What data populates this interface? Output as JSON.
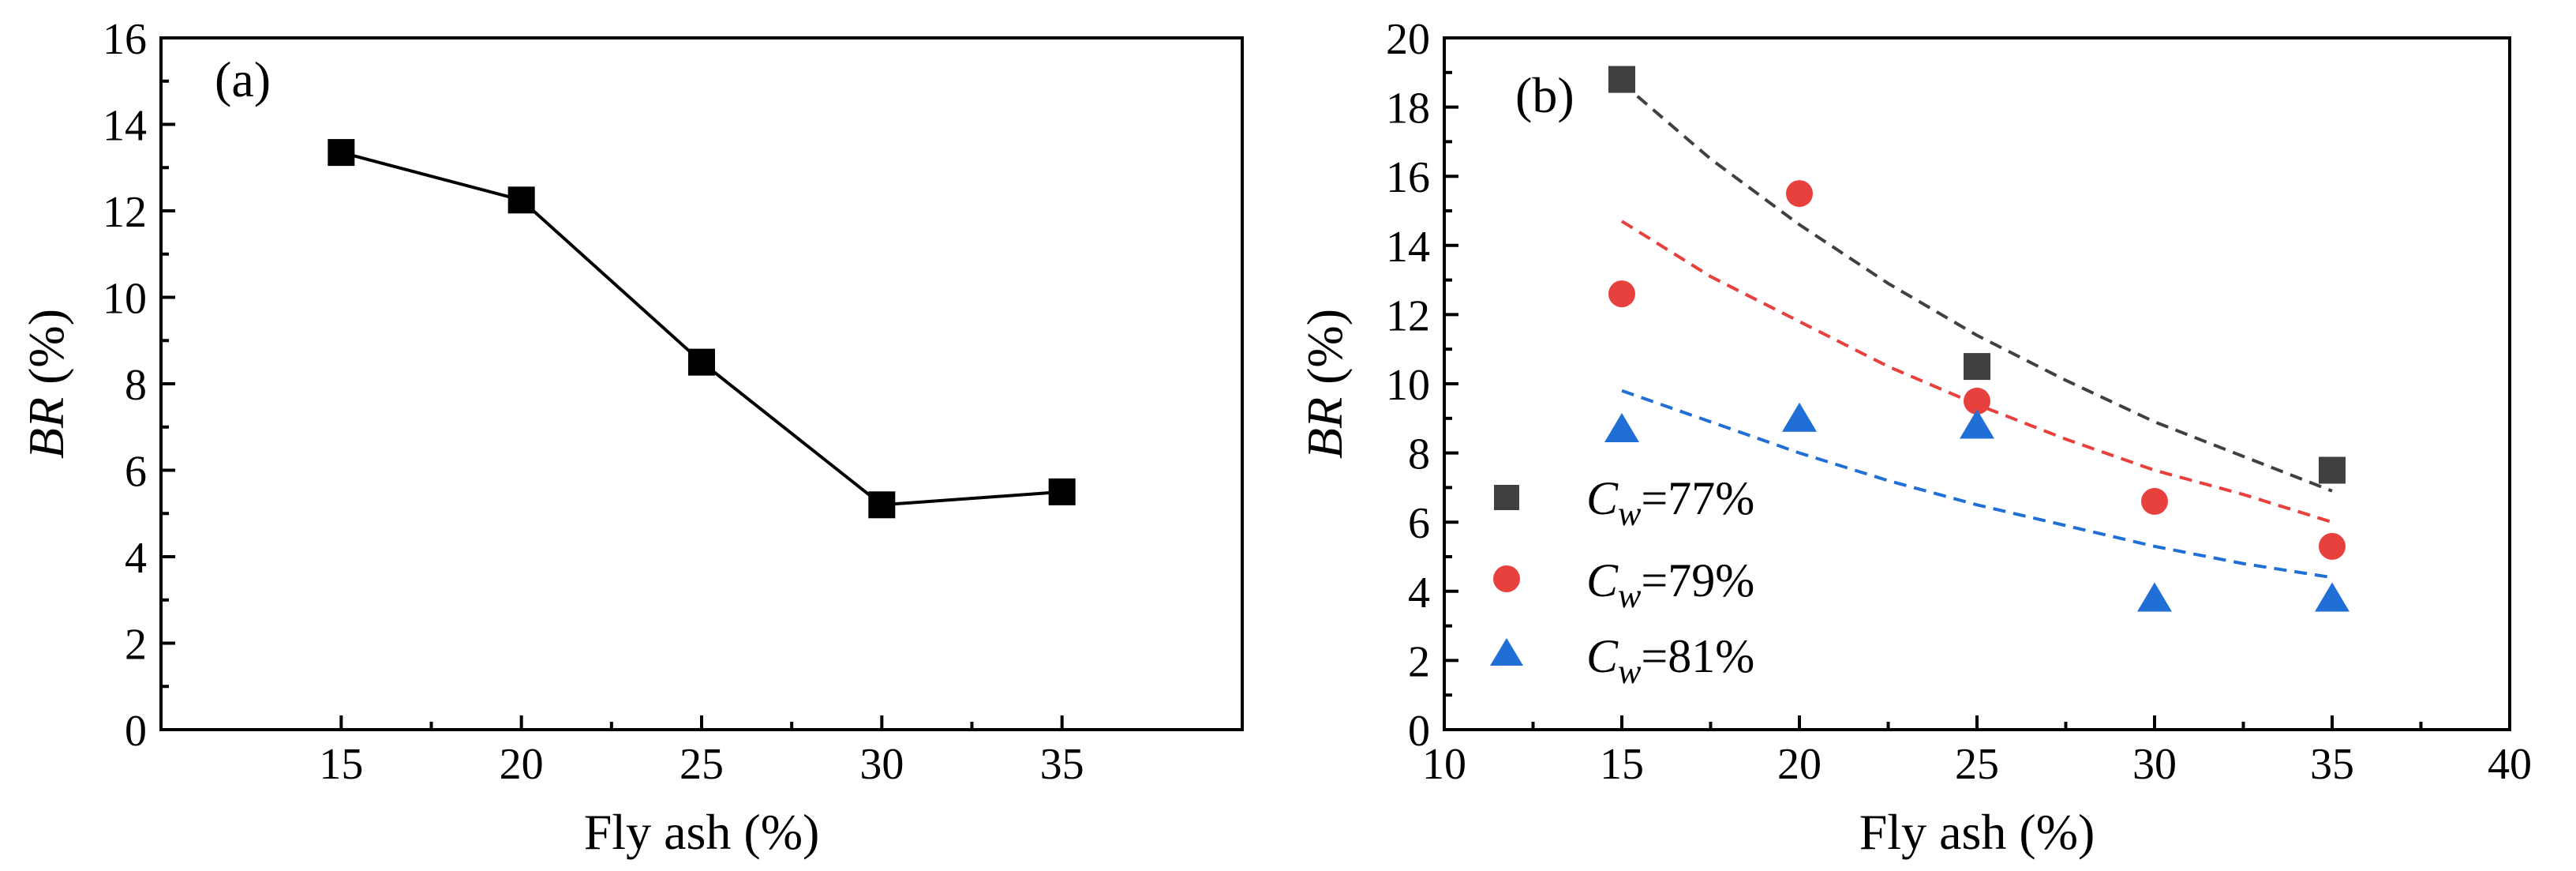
{
  "chart_data": [
    {
      "type": "line",
      "panel_label": "(a)",
      "xlabel": "Fly ash (%)",
      "ylabel_italic": "BR",
      "ylabel_rest": " (%)",
      "xlim": [
        10,
        40
      ],
      "ylim": [
        0,
        16
      ],
      "xticks": [
        15,
        20,
        25,
        30,
        35
      ],
      "yticks": [
        0,
        2,
        4,
        6,
        8,
        10,
        12,
        14,
        16
      ],
      "series": [
        {
          "name": "BR",
          "color": "#000000",
          "marker": "square",
          "x": [
            15,
            20,
            25,
            30,
            35
          ],
          "values": [
            13.35,
            12.25,
            8.5,
            5.2,
            5.5
          ]
        }
      ]
    },
    {
      "type": "scatter",
      "panel_label": "(b)",
      "xlabel": "Fly ash (%)",
      "ylabel_italic": "BR",
      "ylabel_rest": " (%)",
      "xlim": [
        10,
        40
      ],
      "ylim": [
        0,
        20
      ],
      "xticks": [
        10,
        15,
        20,
        25,
        30,
        35,
        40
      ],
      "yticks": [
        0,
        2,
        4,
        6,
        8,
        10,
        12,
        14,
        16,
        18,
        20
      ],
      "legend_position": "lower-left",
      "series": [
        {
          "name_sym": "C",
          "name_sub": "w",
          "name_rest": "=77%",
          "color": "#404040",
          "marker": "square",
          "x": [
            15,
            25,
            35
          ],
          "values": [
            18.8,
            10.5,
            7.5
          ],
          "fit": {
            "x": [
              15,
              17.5,
              20,
              22.5,
              25,
              27.5,
              30,
              32.5,
              35
            ],
            "y": [
              18.7,
              16.5,
              14.6,
              12.9,
              11.4,
              10.1,
              8.9,
              7.9,
              6.9
            ]
          }
        },
        {
          "name_sym": "C",
          "name_sub": "w",
          "name_rest": "=79%",
          "color": "#e8403c",
          "marker": "circle",
          "x": [
            15,
            20,
            25,
            30,
            35
          ],
          "values": [
            12.6,
            15.5,
            9.5,
            6.6,
            5.3
          ],
          "fit": {
            "x": [
              15,
              17.5,
              20,
              22.5,
              25,
              27.5,
              30,
              32.5,
              35
            ],
            "y": [
              14.7,
              13.1,
              11.8,
              10.5,
              9.4,
              8.4,
              7.5,
              6.8,
              6.0
            ]
          }
        },
        {
          "name_sym": "C",
          "name_sub": "w",
          "name_rest": "=81%",
          "color": "#1f6fd6",
          "marker": "triangle",
          "x": [
            15,
            20,
            25,
            30,
            35
          ],
          "values": [
            8.7,
            9.0,
            8.8,
            3.8,
            3.8
          ],
          "fit": {
            "x": [
              15,
              17.5,
              20,
              22.5,
              25,
              27.5,
              30,
              32.5,
              35
            ],
            "y": [
              9.8,
              8.9,
              8.0,
              7.2,
              6.5,
              5.9,
              5.3,
              4.8,
              4.4
            ]
          }
        }
      ]
    }
  ]
}
